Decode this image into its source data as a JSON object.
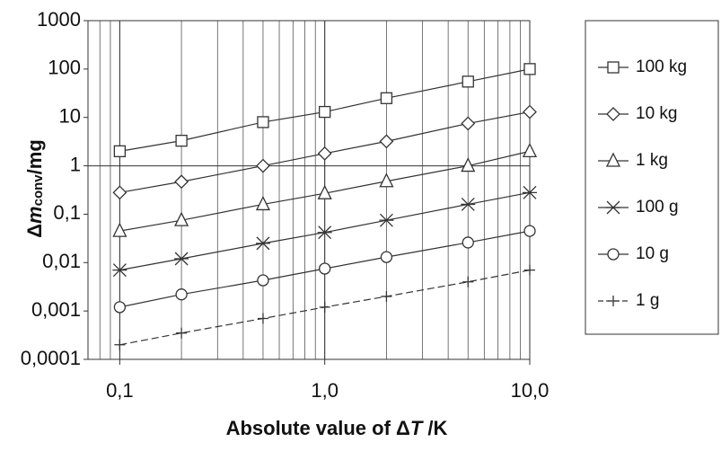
{
  "chart_data": {
    "type": "line",
    "x": [
      0.1,
      0.2,
      0.5,
      1,
      2,
      5,
      10
    ],
    "series": [
      {
        "name": "100 kg",
        "marker": "square",
        "color": "#333333",
        "values": [
          2,
          3.3,
          8,
          13,
          25,
          55,
          100
        ]
      },
      {
        "name": "10 kg",
        "marker": "diamond",
        "color": "#333333",
        "values": [
          0.28,
          0.47,
          1,
          1.8,
          3.2,
          7.5,
          13
        ]
      },
      {
        "name": "1 kg",
        "marker": "triangle",
        "color": "#333333",
        "values": [
          0.045,
          0.075,
          0.16,
          0.27,
          0.48,
          1,
          2
        ]
      },
      {
        "name": "100 g",
        "marker": "x",
        "color": "#333333",
        "values": [
          0.007,
          0.012,
          0.025,
          0.042,
          0.075,
          0.16,
          0.28
        ]
      },
      {
        "name": "10 g",
        "marker": "circle",
        "color": "#333333",
        "values": [
          0.0012,
          0.0022,
          0.0043,
          0.0075,
          0.013,
          0.026,
          0.045
        ]
      },
      {
        "name": "1 g",
        "marker": "plus",
        "color": "#333333",
        "dashed": true,
        "values": [
          0.0002,
          0.00035,
          0.0007,
          0.0012,
          0.002,
          0.004,
          0.007
        ]
      }
    ],
    "xlog": true,
    "ylog": true,
    "xlim": [
      0.07,
      10
    ],
    "ylim": [
      0.0001,
      1000
    ],
    "xticks": [
      {
        "value": 0.1,
        "label": "0,1"
      },
      {
        "value": 1,
        "label": "1,0"
      },
      {
        "value": 10,
        "label": "10,0"
      }
    ],
    "yticks": [
      {
        "value": 0.0001,
        "label": "0,0001"
      },
      {
        "value": 0.001,
        "label": "0,001"
      },
      {
        "value": 0.01,
        "label": "0,01"
      },
      {
        "value": 0.1,
        "label": "0,1"
      },
      1,
      10,
      100,
      1000
    ],
    "ylabel": [
      "Δ",
      "m",
      "conv",
      "/mg"
    ],
    "xlabel": [
      "Absolute value of ",
      "Δ",
      "T",
      " /K"
    ],
    "legend": "right"
  }
}
